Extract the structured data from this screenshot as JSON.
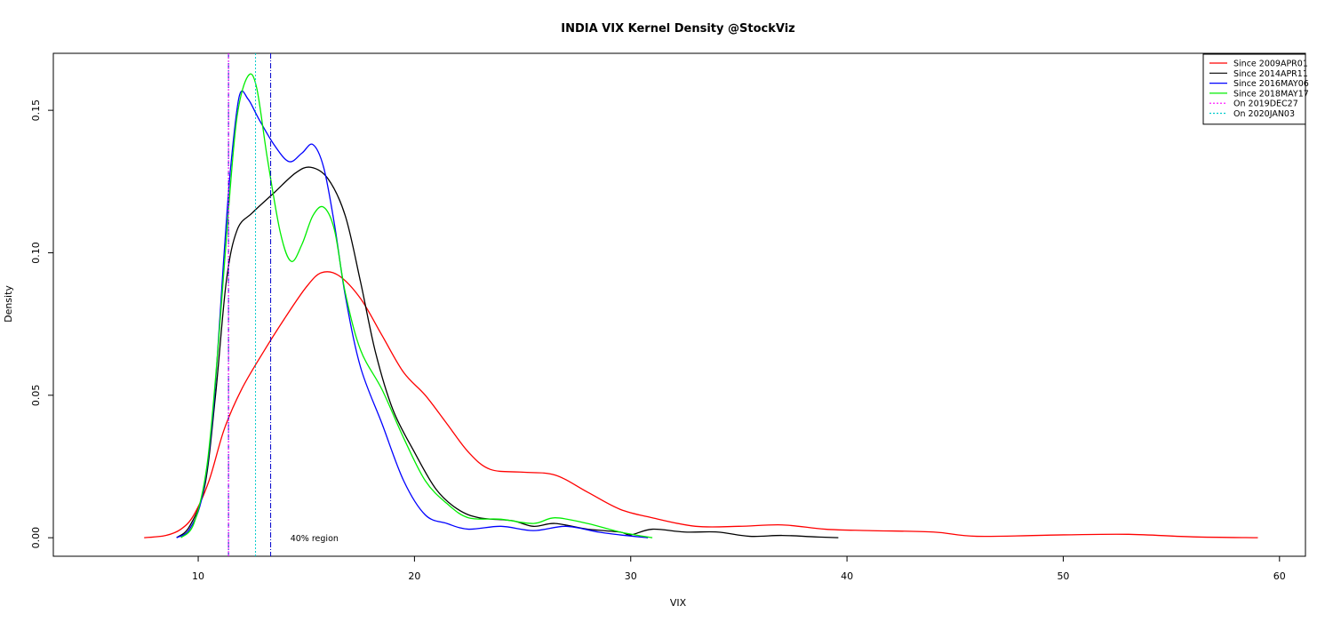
{
  "chart_data": {
    "type": "line",
    "title": "INDIA VIX Kernel Density @StockViz",
    "xlabel": "VIX",
    "ylabel": "Density",
    "xlim": [
      3.3,
      61.2
    ],
    "ylim": [
      -0.0065,
      0.17
    ],
    "x_ticks": [
      10,
      20,
      30,
      40,
      50,
      60
    ],
    "x_tick_labels": [
      "10",
      "20",
      "30",
      "40",
      "50",
      "60"
    ],
    "y_ticks": [
      0.0,
      0.05,
      0.1,
      0.15
    ],
    "y_tick_labels": [
      "0.00",
      "0.05",
      "0.10",
      "0.15"
    ],
    "grid": false,
    "legend_position": "top-right",
    "series": [
      {
        "name": "Since 2009APR01",
        "color": "#ff0000",
        "style": "solid",
        "points": [
          [
            7.5,
            0.0
          ],
          [
            8.5,
            0.0008
          ],
          [
            9.2,
            0.003
          ],
          [
            9.8,
            0.008
          ],
          [
            10.5,
            0.02
          ],
          [
            11.2,
            0.038
          ],
          [
            12,
            0.052
          ],
          [
            13,
            0.065
          ],
          [
            14,
            0.077
          ],
          [
            15,
            0.088
          ],
          [
            15.7,
            0.093
          ],
          [
            16.5,
            0.092
          ],
          [
            17.5,
            0.084
          ],
          [
            18.5,
            0.071
          ],
          [
            19.5,
            0.058
          ],
          [
            20.5,
            0.05
          ],
          [
            21.5,
            0.04
          ],
          [
            22.5,
            0.03
          ],
          [
            23.5,
            0.024
          ],
          [
            25,
            0.023
          ],
          [
            26.5,
            0.022
          ],
          [
            28,
            0.016
          ],
          [
            29.5,
            0.01
          ],
          [
            31,
            0.007
          ],
          [
            33,
            0.004
          ],
          [
            35,
            0.004
          ],
          [
            37,
            0.0045
          ],
          [
            39,
            0.003
          ],
          [
            41,
            0.0025
          ],
          [
            44,
            0.002
          ],
          [
            46,
            0.0005
          ],
          [
            50,
            0.001
          ],
          [
            53,
            0.0012
          ],
          [
            56,
            0.0003
          ],
          [
            59,
            0.0
          ]
        ]
      },
      {
        "name": "Since 2014APR11",
        "color": "#000000",
        "style": "solid",
        "points": [
          [
            9.0,
            0.0
          ],
          [
            9.6,
            0.004
          ],
          [
            10.3,
            0.018
          ],
          [
            10.8,
            0.05
          ],
          [
            11.3,
            0.09
          ],
          [
            11.8,
            0.108
          ],
          [
            12.5,
            0.114
          ],
          [
            13.5,
            0.121
          ],
          [
            14.5,
            0.128
          ],
          [
            15.2,
            0.13
          ],
          [
            16,
            0.126
          ],
          [
            16.8,
            0.113
          ],
          [
            17.5,
            0.09
          ],
          [
            18.2,
            0.065
          ],
          [
            19,
            0.045
          ],
          [
            20,
            0.03
          ],
          [
            21,
            0.017
          ],
          [
            22,
            0.01
          ],
          [
            23,
            0.007
          ],
          [
            24.5,
            0.006
          ],
          [
            25.5,
            0.004
          ],
          [
            26.5,
            0.005
          ],
          [
            28,
            0.003
          ],
          [
            29.5,
            0.002
          ],
          [
            30,
            0.001
          ],
          [
            31,
            0.003
          ],
          [
            32.5,
            0.002
          ],
          [
            34,
            0.002
          ],
          [
            35.5,
            0.0005
          ],
          [
            37,
            0.0008
          ],
          [
            38.5,
            0.0003
          ],
          [
            39.6,
            0.0
          ]
        ]
      },
      {
        "name": "Since 2016MAY06",
        "color": "#0000ff",
        "style": "solid",
        "points": [
          [
            9.0,
            0.0
          ],
          [
            9.6,
            0.003
          ],
          [
            10.2,
            0.015
          ],
          [
            10.7,
            0.045
          ],
          [
            11.2,
            0.1
          ],
          [
            11.5,
            0.13
          ],
          [
            11.9,
            0.155
          ],
          [
            12.3,
            0.154
          ],
          [
            12.8,
            0.147
          ],
          [
            13.5,
            0.138
          ],
          [
            14.2,
            0.132
          ],
          [
            14.8,
            0.135
          ],
          [
            15.3,
            0.138
          ],
          [
            15.8,
            0.13
          ],
          [
            16.3,
            0.11
          ],
          [
            16.8,
            0.085
          ],
          [
            17.5,
            0.06
          ],
          [
            18.5,
            0.04
          ],
          [
            19.5,
            0.02
          ],
          [
            20.5,
            0.008
          ],
          [
            21.5,
            0.005
          ],
          [
            22.5,
            0.003
          ],
          [
            24,
            0.004
          ],
          [
            25.5,
            0.0025
          ],
          [
            27,
            0.004
          ],
          [
            28.5,
            0.002
          ],
          [
            29.5,
            0.001
          ],
          [
            30.8,
            0.0
          ]
        ]
      },
      {
        "name": "Since 2018MAY17",
        "color": "#00ee00",
        "style": "solid",
        "points": [
          [
            9.2,
            0.0
          ],
          [
            9.8,
            0.005
          ],
          [
            10.4,
            0.025
          ],
          [
            10.9,
            0.065
          ],
          [
            11.4,
            0.115
          ],
          [
            11.8,
            0.148
          ],
          [
            12.3,
            0.162
          ],
          [
            12.7,
            0.158
          ],
          [
            13.2,
            0.133
          ],
          [
            13.8,
            0.107
          ],
          [
            14.3,
            0.097
          ],
          [
            14.8,
            0.103
          ],
          [
            15.3,
            0.113
          ],
          [
            15.8,
            0.116
          ],
          [
            16.3,
            0.108
          ],
          [
            16.8,
            0.086
          ],
          [
            17.5,
            0.066
          ],
          [
            18.5,
            0.052
          ],
          [
            19.5,
            0.035
          ],
          [
            20.5,
            0.02
          ],
          [
            21.5,
            0.012
          ],
          [
            22.5,
            0.007
          ],
          [
            24,
            0.0065
          ],
          [
            25.5,
            0.005
          ],
          [
            26.5,
            0.007
          ],
          [
            28,
            0.005
          ],
          [
            29.5,
            0.002
          ],
          [
            31,
            0.0
          ]
        ]
      }
    ],
    "vlines": [
      {
        "name": "On 2019DEC27",
        "x": 11.4,
        "color": "#ff00ff",
        "style": "dotted"
      },
      {
        "name": "On 2020JAN03",
        "x": 12.65,
        "color": "#00cccc",
        "style": "dotted"
      }
    ],
    "region_lines": [
      {
        "x": 11.4,
        "color": "#0000cc",
        "style": "dashdot"
      },
      {
        "x": 13.35,
        "color": "#0000cc",
        "style": "dashdot"
      }
    ],
    "annotations": [
      {
        "text": "40% region",
        "x": 15.0,
        "y": 0.0
      }
    ]
  }
}
